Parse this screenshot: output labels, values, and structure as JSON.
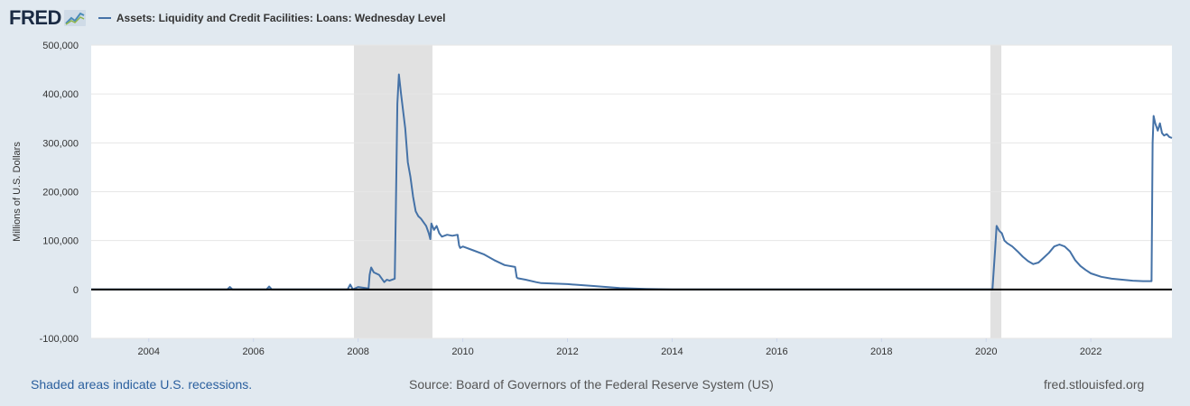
{
  "header": {
    "logo_text": "FRED",
    "logo_icon": "line-chart-icon",
    "series_label": "Assets: Liquidity and Credit Facilities: Loans: Wednesday Level",
    "series_color": "#4572a7"
  },
  "footer": {
    "recession_note": "Shaded areas indicate U.S. recessions.",
    "source": "Source: Board of Governors of the Federal Reserve System (US)",
    "site": "fred.stlouisfed.org"
  },
  "chart_data": {
    "type": "line",
    "title": "",
    "ylabel": "Millions of U.S. Dollars",
    "xlabel": "",
    "xlim": [
      2002.9,
      2023.55
    ],
    "ylim": [
      -100000,
      500000
    ],
    "x_ticks": [
      "2004",
      "2006",
      "2008",
      "2010",
      "2012",
      "2014",
      "2016",
      "2018",
      "2020",
      "2022"
    ],
    "y_ticks": [
      "500,000",
      "400,000",
      "300,000",
      "200,000",
      "100,000",
      "0",
      "-100,000"
    ],
    "grid": "horizontal",
    "recession_shading": [
      [
        2007.92,
        2009.42
      ],
      [
        2020.08,
        2020.29
      ]
    ],
    "series": [
      {
        "color": "#4572a7",
        "x": [
          2002.9,
          2005.5,
          2005.55,
          2005.6,
          2006.0,
          2006.25,
          2006.3,
          2006.35,
          2007.0,
          2007.8,
          2007.85,
          2007.9,
          2008.0,
          2008.2,
          2008.22,
          2008.25,
          2008.3,
          2008.4,
          2008.5,
          2008.55,
          2008.6,
          2008.7,
          2008.72,
          2008.75,
          2008.78,
          2008.82,
          2008.9,
          2008.95,
          2009.0,
          2009.05,
          2009.1,
          2009.15,
          2009.2,
          2009.3,
          2009.35,
          2009.38,
          2009.4,
          2009.45,
          2009.5,
          2009.55,
          2009.6,
          2009.7,
          2009.8,
          2009.9,
          2009.93,
          2009.95,
          2010.0,
          2010.2,
          2010.4,
          2010.6,
          2010.8,
          2011.0,
          2011.03,
          2011.05,
          2011.2,
          2011.4,
          2011.5,
          2012.0,
          2012.5,
          2013.0,
          2013.5,
          2014.0,
          2016.0,
          2018.0,
          2020.0,
          2020.12,
          2020.17,
          2020.2,
          2020.25,
          2020.3,
          2020.35,
          2020.4,
          2020.5,
          2020.6,
          2020.7,
          2020.8,
          2020.9,
          2021.0,
          2021.1,
          2021.2,
          2021.3,
          2021.4,
          2021.5,
          2021.6,
          2021.7,
          2021.8,
          2021.9,
          2022.0,
          2022.2,
          2022.4,
          2022.6,
          2022.8,
          2023.0,
          2023.16,
          2023.18,
          2023.2,
          2023.23,
          2023.28,
          2023.32,
          2023.36,
          2023.4,
          2023.45,
          2023.5,
          2023.55
        ],
        "values": [
          0,
          0,
          5000,
          0,
          0,
          0,
          6000,
          0,
          0,
          0,
          10000,
          0,
          5000,
          2000,
          30000,
          45000,
          35000,
          30000,
          15000,
          20000,
          18000,
          22000,
          160000,
          380000,
          440000,
          400000,
          330000,
          260000,
          230000,
          190000,
          160000,
          150000,
          145000,
          130000,
          115000,
          103000,
          135000,
          122000,
          130000,
          115000,
          108000,
          112000,
          110000,
          112000,
          90000,
          85000,
          88000,
          80000,
          72000,
          60000,
          50000,
          46000,
          25000,
          23000,
          20000,
          15000,
          13000,
          11000,
          7000,
          3000,
          1000,
          0,
          0,
          0,
          0,
          0,
          80000,
          130000,
          120000,
          115000,
          100000,
          95000,
          88000,
          78000,
          67000,
          58000,
          52000,
          55000,
          65000,
          75000,
          88000,
          92000,
          88000,
          78000,
          60000,
          48000,
          40000,
          33000,
          26000,
          22000,
          20000,
          18000,
          17000,
          17000,
          300000,
          355000,
          340000,
          325000,
          340000,
          320000,
          315000,
          318000,
          312000,
          310000
        ]
      }
    ]
  }
}
